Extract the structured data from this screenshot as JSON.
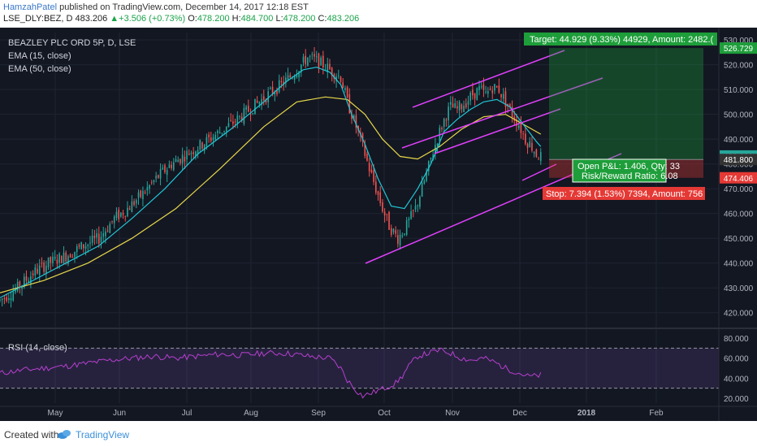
{
  "header": {
    "author": "HamzahPatel",
    "published": " published on TradingView.com, December 14, 2017 12:18 EST",
    "symbol": "LSE_DLY:BEZ, D",
    "last": "483.206",
    "change": "+3.506 (+0.73%)",
    "o_label": "O:",
    "o_val": "478.200",
    "h_label": "H:",
    "h_val": "484.700",
    "l_label": "L:",
    "l_val": "478.200",
    "c_label": "C:",
    "c_val": "483.206"
  },
  "legend": {
    "title": "BEAZLEY PLC ORD 5P, D, LSE",
    "ema15": "EMA (15, close)",
    "ema50": "EMA (50, close)",
    "rsi": "RSI (14, close)"
  },
  "position": {
    "target": "Target: 44.929 (9.33%) 44929, Amount: 2482.(",
    "pnl": "Open P&L: 1.406, Qty: 33",
    "rr": "Risk/Reward Ratio: 6.08",
    "stop": "Stop: 7.394 (1.53%) 7394, Amount: 756"
  },
  "colors": {
    "bg": "#131722",
    "up": "#26a69a",
    "down": "#ef5350",
    "ema15": "#21c6d6",
    "ema50": "#e8d84a",
    "channel": "#e040fb",
    "rsi": "#b83fcf",
    "target": "#1e9e3a",
    "stop": "#e53935",
    "grid": "#1f2433"
  },
  "footer": {
    "created": "Created with",
    "brand": "TradingView"
  },
  "chart_data": {
    "type": "candlestick",
    "price_axis": {
      "ylim": [
        415,
        533
      ],
      "ticks": [
        420,
        430,
        440,
        450,
        460,
        470,
        480,
        490,
        500,
        510,
        520,
        530
      ]
    },
    "price_labels": [
      {
        "text": "526.729",
        "value": 526.729,
        "color": "#1e9e3a"
      },
      {
        "text": "483.206",
        "value": 483.206,
        "color": "#26a69a"
      },
      {
        "text": "481.800",
        "value": 481.8,
        "color": "#333333"
      },
      {
        "text": "474.406",
        "value": 474.406,
        "color": "#e53935"
      }
    ],
    "x_ticks": [
      "May",
      "Jun",
      "Jul",
      "Aug",
      "Sep",
      "Oct",
      "Nov",
      "Dec",
      "2018",
      "Feb"
    ],
    "close_path": [
      [
        0,
        425
      ],
      [
        8,
        430
      ],
      [
        15,
        436
      ],
      [
        22,
        440
      ],
      [
        30,
        443
      ],
      [
        38,
        447
      ],
      [
        45,
        450
      ],
      [
        52,
        458
      ],
      [
        58,
        462
      ],
      [
        65,
        468
      ],
      [
        72,
        475
      ],
      [
        78,
        480
      ],
      [
        85,
        484
      ],
      [
        92,
        488
      ],
      [
        100,
        493
      ],
      [
        108,
        498
      ],
      [
        115,
        503
      ],
      [
        122,
        508
      ],
      [
        128,
        512
      ],
      [
        133,
        516
      ],
      [
        137,
        520
      ],
      [
        140,
        523
      ],
      [
        143,
        522
      ],
      [
        147,
        520
      ],
      [
        150,
        518
      ],
      [
        155,
        515
      ],
      [
        158,
        505
      ],
      [
        162,
        495
      ],
      [
        165,
        487
      ],
      [
        168,
        478
      ],
      [
        171,
        470
      ],
      [
        174,
        462
      ],
      [
        177,
        455
      ],
      [
        181,
        450
      ],
      [
        185,
        455
      ],
      [
        189,
        462
      ],
      [
        193,
        473
      ],
      [
        197,
        485
      ],
      [
        200,
        493
      ],
      [
        203,
        500
      ],
      [
        205,
        503
      ],
      [
        208,
        502
      ],
      [
        212,
        505
      ],
      [
        215,
        508
      ],
      [
        218,
        510
      ],
      [
        221,
        508
      ],
      [
        224,
        511
      ],
      [
        227,
        510
      ],
      [
        230,
        505
      ],
      [
        233,
        500
      ],
      [
        236,
        496
      ],
      [
        239,
        490
      ],
      [
        242,
        487
      ],
      [
        244,
        484
      ],
      [
        246,
        483
      ]
    ],
    "ema15_path": [
      [
        0,
        426
      ],
      [
        15,
        433
      ],
      [
        30,
        440
      ],
      [
        45,
        447
      ],
      [
        60,
        458
      ],
      [
        75,
        470
      ],
      [
        90,
        484
      ],
      [
        105,
        494
      ],
      [
        120,
        505
      ],
      [
        130,
        513
      ],
      [
        138,
        518
      ],
      [
        144,
        519
      ],
      [
        150,
        517
      ],
      [
        155,
        512
      ],
      [
        160,
        500
      ],
      [
        166,
        488
      ],
      [
        172,
        474
      ],
      [
        178,
        463
      ],
      [
        184,
        462
      ],
      [
        190,
        470
      ],
      [
        196,
        480
      ],
      [
        202,
        493
      ],
      [
        208,
        498
      ],
      [
        214,
        502
      ],
      [
        220,
        505
      ],
      [
        226,
        506
      ],
      [
        232,
        503
      ],
      [
        238,
        496
      ],
      [
        244,
        489
      ],
      [
        246,
        487
      ]
    ],
    "ema50_path": [
      [
        0,
        428
      ],
      [
        20,
        433
      ],
      [
        40,
        440
      ],
      [
        60,
        450
      ],
      [
        80,
        462
      ],
      [
        100,
        478
      ],
      [
        120,
        495
      ],
      [
        135,
        505
      ],
      [
        148,
        507
      ],
      [
        158,
        506
      ],
      [
        166,
        500
      ],
      [
        174,
        490
      ],
      [
        182,
        483
      ],
      [
        190,
        482
      ],
      [
        200,
        487
      ],
      [
        210,
        494
      ],
      [
        220,
        499
      ],
      [
        230,
        500
      ],
      [
        240,
        495
      ],
      [
        246,
        492
      ]
    ],
    "rsi": {
      "ylim": [
        15,
        85
      ],
      "ticks": [
        20,
        40,
        60,
        80
      ],
      "upper": 70,
      "lower": 30,
      "values": [
        [
          0,
          45
        ],
        [
          10,
          48
        ],
        [
          20,
          50
        ],
        [
          30,
          52
        ],
        [
          40,
          55
        ],
        [
          50,
          58
        ],
        [
          60,
          60
        ],
        [
          70,
          62
        ],
        [
          80,
          60
        ],
        [
          90,
          62
        ],
        [
          100,
          64
        ],
        [
          110,
          63
        ],
        [
          120,
          65
        ],
        [
          130,
          65
        ],
        [
          140,
          62
        ],
        [
          150,
          60
        ],
        [
          155,
          50
        ],
        [
          158,
          38
        ],
        [
          162,
          28
        ],
        [
          165,
          22
        ],
        [
          170,
          26
        ],
        [
          175,
          30
        ],
        [
          180,
          35
        ],
        [
          183,
          42
        ],
        [
          186,
          52
        ],
        [
          190,
          62
        ],
        [
          195,
          65
        ],
        [
          200,
          68
        ],
        [
          205,
          65
        ],
        [
          210,
          60
        ],
        [
          215,
          58
        ],
        [
          220,
          60
        ],
        [
          225,
          56
        ],
        [
          230,
          50
        ],
        [
          235,
          46
        ],
        [
          240,
          42
        ],
        [
          243,
          42
        ],
        [
          246,
          43
        ]
      ]
    }
  }
}
